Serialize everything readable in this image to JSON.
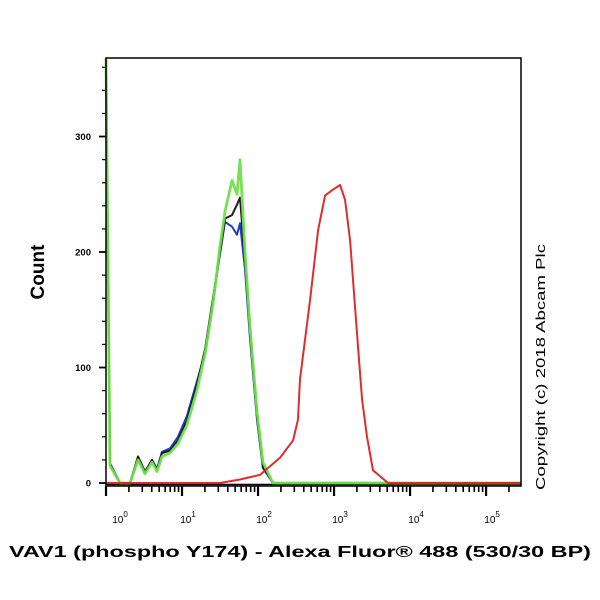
{
  "chart_data": {
    "type": "line",
    "title": "",
    "xlabel": "VAV1 (phospho Y174) - Alexa Fluor® 488 (530/30 BP)",
    "ylabel": "Count",
    "xscale": "log",
    "xlim": [
      1,
      288000
    ],
    "ylim": [
      0,
      368
    ],
    "grid": false,
    "x_ticks": [
      {
        "value": 1,
        "base": "10",
        "exp": "0"
      },
      {
        "value": 10,
        "base": "10",
        "exp": "1"
      },
      {
        "value": 100,
        "base": "10",
        "exp": "2"
      },
      {
        "value": 1000,
        "base": "10",
        "exp": "3"
      },
      {
        "value": 10000,
        "base": "10",
        "exp": "4"
      },
      {
        "value": 100000,
        "base": "10",
        "exp": "5"
      }
    ],
    "y_ticks": [
      0,
      100,
      200,
      300
    ],
    "annotation": "Copyright (c) 2018 Abcam Plc",
    "series": [
      {
        "color": "#1a2ecc",
        "x": [
          1,
          1.13,
          1.53,
          2.07,
          2.64,
          3.26,
          4.03,
          4.69,
          5.46,
          6.95,
          8.86,
          11.6,
          15.7,
          20.1,
          25.6,
          31.6,
          36.8,
          45.5,
          52.9,
          58.0,
          67.4,
          78.5,
          97.0,
          116,
          157,
          288000
        ],
        "y": [
          368,
          17,
          0,
          0,
          22,
          9,
          20,
          12,
          27,
          30,
          40,
          58,
          88,
          112,
          158,
          198,
          226,
          222,
          215,
          225,
          185,
          125,
          55,
          13,
          0,
          0
        ]
      },
      {
        "color": "#111111",
        "x": [
          1,
          1.13,
          1.53,
          2.07,
          2.64,
          3.26,
          4.03,
          4.69,
          5.46,
          6.95,
          8.86,
          11.6,
          15.7,
          20.1,
          25.6,
          31.6,
          36.8,
          45.5,
          52.9,
          58.0,
          67.4,
          78.5,
          97.0,
          116,
          157,
          288000
        ],
        "y": [
          368,
          17,
          0,
          0,
          23,
          10,
          20,
          12,
          26,
          28,
          37,
          54,
          85,
          116,
          160,
          200,
          229,
          232,
          241,
          247,
          192,
          129,
          57,
          14,
          0,
          0
        ]
      },
      {
        "color": "#6ee04a",
        "x": [
          1,
          1.13,
          1.53,
          2.07,
          2.64,
          3.26,
          4.03,
          4.69,
          5.46,
          6.95,
          8.86,
          11.6,
          15.7,
          20.1,
          25.6,
          31.6,
          36.8,
          45.5,
          52.9,
          58.0,
          67.4,
          78.5,
          97.0,
          116,
          157,
          288000
        ],
        "y": [
          368,
          15,
          0,
          0,
          20,
          8,
          18,
          10,
          23,
          26,
          34,
          50,
          80,
          112,
          155,
          205,
          235,
          262,
          250,
          280,
          200,
          135,
          62,
          18,
          0,
          0
        ]
      },
      {
        "color": "#e02020",
        "x": [
          1,
          10.9,
          31.6,
          58,
          106,
          195,
          289,
          336,
          357,
          483,
          616,
          762,
          970,
          1200,
          1396,
          1625,
          1947,
          2336,
          2716,
          3258,
          5140,
          288000
        ],
        "y": [
          0,
          0,
          0,
          3,
          7,
          22,
          37,
          55,
          90,
          158,
          219,
          249,
          254,
          258,
          245,
          210,
          141,
          72,
          40,
          11,
          0,
          0
        ]
      }
    ]
  }
}
